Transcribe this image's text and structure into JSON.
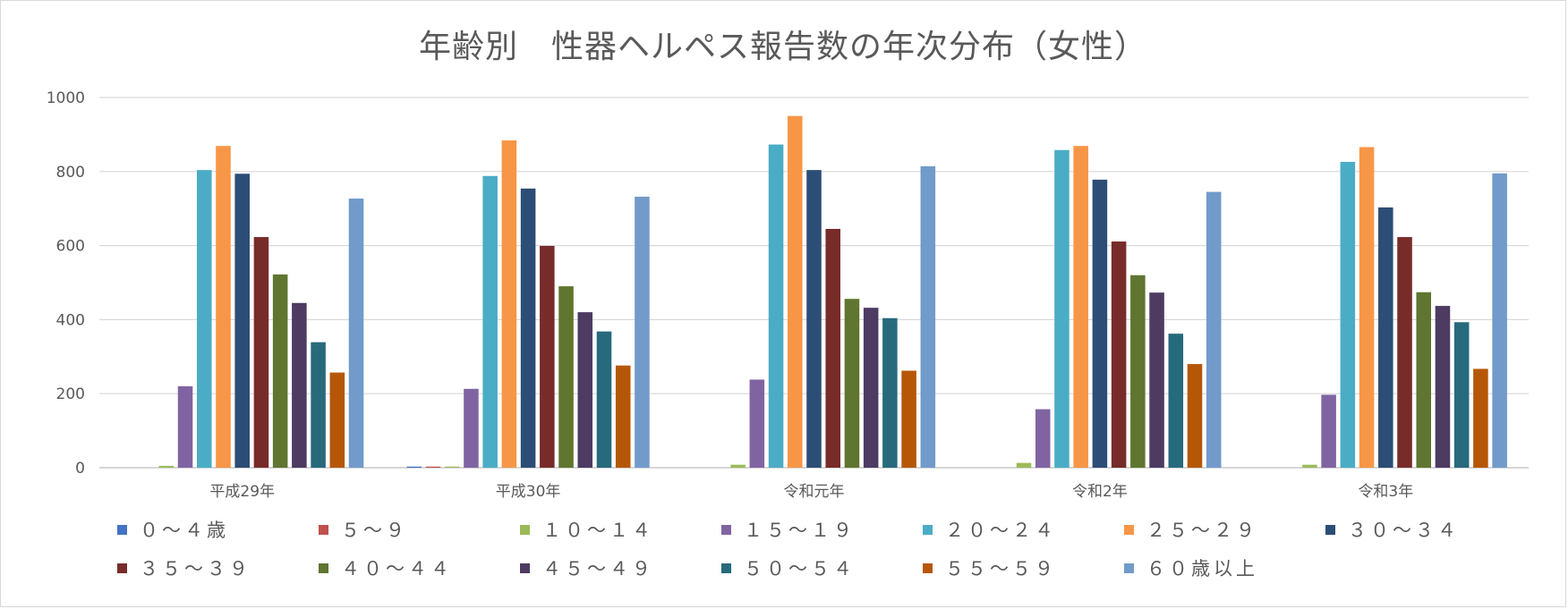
{
  "chart_data": {
    "type": "bar",
    "title": "年齢別　性器ヘルペス報告数の年次分布（女性）",
    "categories": [
      "平成29年",
      "平成30年",
      "令和元年",
      "令和2年",
      "令和3年"
    ],
    "ylim": [
      0,
      1000
    ],
    "yticks": [
      "0",
      "200",
      "400",
      "600",
      "800",
      "1000"
    ],
    "grid": true,
    "legend_position": "bottom",
    "series": [
      {
        "name": "０～４歳",
        "color": "#4472c4",
        "values": [
          0,
          3,
          0,
          0,
          0
        ]
      },
      {
        "name": "５～９",
        "color": "#c0504d",
        "values": [
          0,
          3,
          0,
          0,
          0
        ]
      },
      {
        "name": "１０～１４",
        "color": "#9bbb59",
        "values": [
          5,
          3,
          8,
          13,
          8
        ]
      },
      {
        "name": "１５～１９",
        "color": "#8064a2",
        "values": [
          220,
          213,
          238,
          158,
          197
        ]
      },
      {
        "name": "２０～２４",
        "color": "#4bacc6",
        "values": [
          804,
          788,
          873,
          858,
          826
        ]
      },
      {
        "name": "２５～２９",
        "color": "#f79646",
        "values": [
          869,
          884,
          950,
          869,
          866
        ]
      },
      {
        "name": "３０～３４",
        "color": "#2c4d75",
        "values": [
          794,
          754,
          804,
          778,
          703
        ]
      },
      {
        "name": "３５～３９",
        "color": "#772c2a",
        "values": [
          623,
          599,
          645,
          611,
          623
        ]
      },
      {
        "name": "４０～４４",
        "color": "#5f7530",
        "values": [
          522,
          490,
          456,
          520,
          474
        ]
      },
      {
        "name": "４５～４９",
        "color": "#4d3b62",
        "values": [
          445,
          420,
          432,
          473,
          437
        ]
      },
      {
        "name": "５０～５４",
        "color": "#276a7c",
        "values": [
          339,
          368,
          404,
          362,
          393
        ]
      },
      {
        "name": "５５～５９",
        "color": "#b65708",
        "values": [
          257,
          276,
          262,
          280,
          267
        ]
      },
      {
        "name": "６０歳以上",
        "color": "#729aca",
        "values": [
          727,
          732,
          814,
          745,
          795
        ]
      }
    ]
  }
}
